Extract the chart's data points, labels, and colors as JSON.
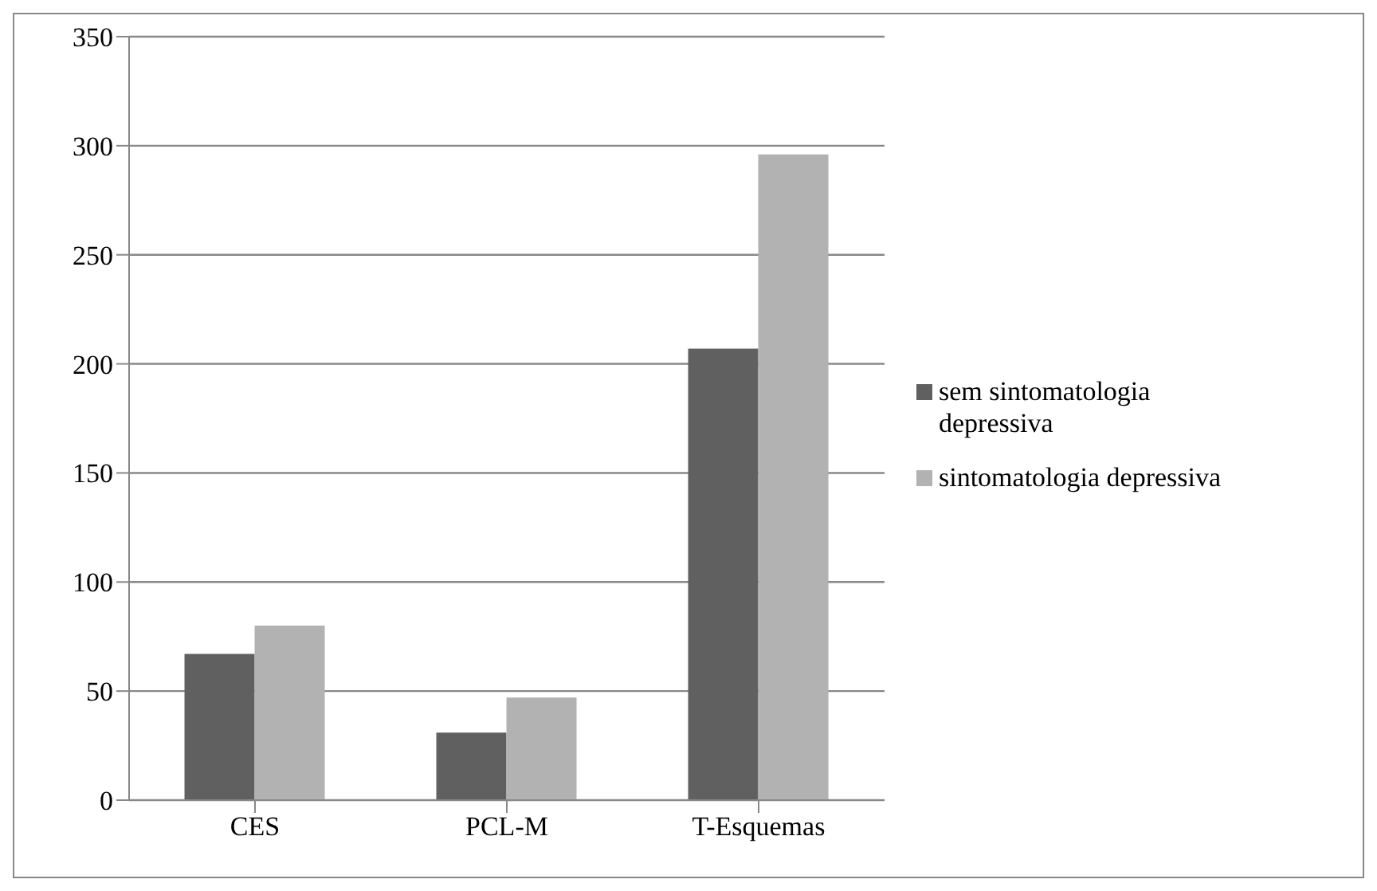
{
  "chart_data": {
    "type": "bar",
    "categories": [
      "CES",
      "PCL-M",
      "T-Esquemas"
    ],
    "series": [
      {
        "name": "sem sintomatologia depressiva",
        "color": "#606060",
        "values": [
          67,
          31,
          207
        ]
      },
      {
        "name": "sintomatologia depressiva",
        "color": "#b2b2b2",
        "values": [
          80,
          47,
          296
        ]
      }
    ],
    "ylim": [
      0,
      350
    ],
    "yticks": [
      0,
      50,
      100,
      150,
      200,
      250,
      300,
      350
    ],
    "grid": "y",
    "legend": "right"
  }
}
